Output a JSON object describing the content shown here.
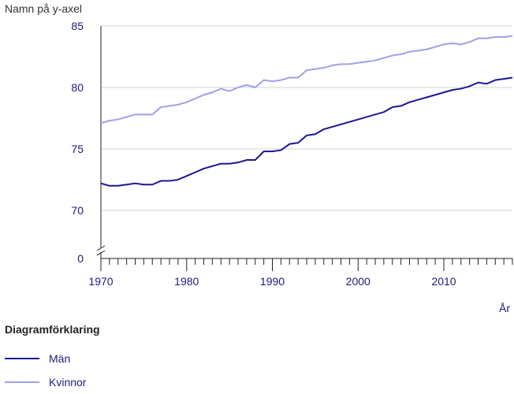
{
  "chart_data": {
    "type": "line",
    "ylabel": "Namn på y-axel",
    "xlabel": "År",
    "xlim": [
      1970,
      2018
    ],
    "y_ticks": [
      0,
      70,
      75,
      80,
      85
    ],
    "x_ticks": [
      1970,
      1980,
      1990,
      2000,
      2010
    ],
    "y_axis_break": true,
    "grid": "horizontal",
    "legend": {
      "title": "Diagramförklaring",
      "position": "bottom-left"
    },
    "x": [
      1970,
      1971,
      1972,
      1973,
      1974,
      1975,
      1976,
      1977,
      1978,
      1979,
      1980,
      1981,
      1982,
      1983,
      1984,
      1985,
      1986,
      1987,
      1988,
      1989,
      1990,
      1991,
      1992,
      1993,
      1994,
      1995,
      1996,
      1997,
      1998,
      1999,
      2000,
      2001,
      2002,
      2003,
      2004,
      2005,
      2006,
      2007,
      2008,
      2009,
      2010,
      2011,
      2012,
      2013,
      2014,
      2015,
      2016,
      2017,
      2018
    ],
    "series": [
      {
        "name": "Män",
        "color": "#1c1495",
        "values": [
          72.2,
          72.0,
          72.0,
          72.1,
          72.2,
          72.1,
          72.1,
          72.4,
          72.4,
          72.5,
          72.8,
          73.1,
          73.4,
          73.6,
          73.8,
          73.8,
          73.9,
          74.1,
          74.1,
          74.8,
          74.8,
          74.9,
          75.4,
          75.5,
          76.1,
          76.2,
          76.6,
          76.8,
          77.0,
          77.2,
          77.4,
          77.6,
          77.8,
          78.0,
          78.4,
          78.5,
          78.8,
          79.0,
          79.2,
          79.4,
          79.6,
          79.8,
          79.9,
          80.1,
          80.4,
          80.3,
          80.6,
          80.7,
          80.8
        ]
      },
      {
        "name": "Kvinnor",
        "color": "#a1a0ea",
        "values": [
          77.1,
          77.3,
          77.4,
          77.6,
          77.8,
          77.8,
          77.8,
          78.4,
          78.5,
          78.6,
          78.8,
          79.1,
          79.4,
          79.6,
          79.9,
          79.7,
          80.0,
          80.2,
          80.0,
          80.6,
          80.5,
          80.6,
          80.8,
          80.8,
          81.4,
          81.5,
          81.6,
          81.8,
          81.9,
          81.9,
          82.0,
          82.1,
          82.2,
          82.4,
          82.6,
          82.7,
          82.9,
          83.0,
          83.1,
          83.3,
          83.5,
          83.6,
          83.5,
          83.7,
          84.0,
          84.0,
          84.1,
          84.1,
          84.2
        ]
      }
    ]
  }
}
